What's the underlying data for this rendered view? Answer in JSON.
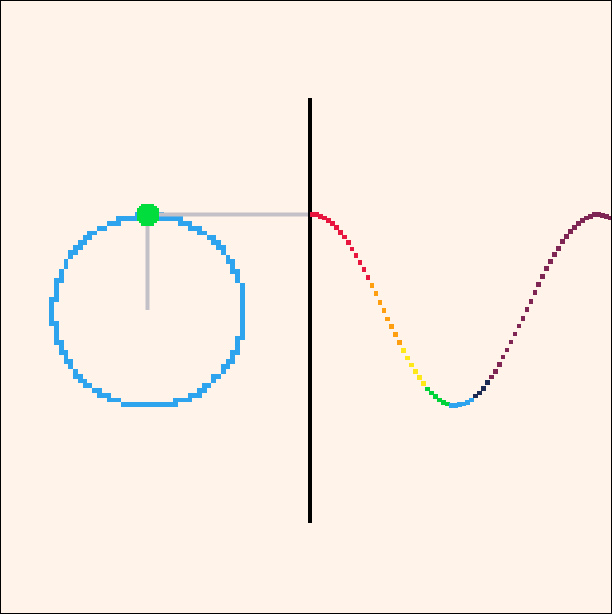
{
  "diagram": {
    "background_color": "#fff3ea",
    "border_color": "#000000",
    "circle_color": "#2ea4ee",
    "point_color": "#00dd3c",
    "guide_color": "#c3c1c7",
    "axis_color": "#000000",
    "wave_colors": [
      "#e8153e",
      "#ff9f10",
      "#ffe81a",
      "#00d23a",
      "#2ea4ee",
      "#1d2b53",
      "#7f2553"
    ],
    "angle_degrees": 90,
    "wave_periods_visible": 0.5
  }
}
